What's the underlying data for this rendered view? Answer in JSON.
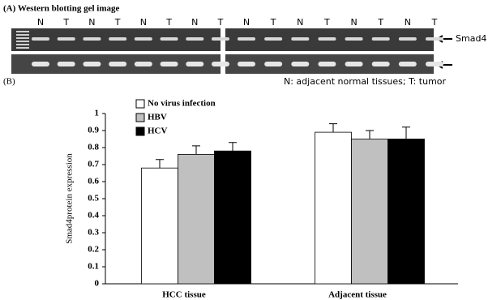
{
  "panel_a": {
    "title": "(A) Western blotting gel image",
    "lanes_left": [
      "N",
      "T",
      "N",
      "T",
      "N",
      "T",
      "N",
      "T"
    ],
    "lanes_right": [
      "N",
      "T",
      "N",
      "T",
      "N",
      "T",
      "N",
      "T"
    ],
    "band_label": "Smad4"
  },
  "panel_b": {
    "label": "(B)",
    "note": "N: adjacent normal tissues; T: tumor"
  },
  "chart_data": {
    "type": "bar",
    "ylabel": "Smad4protein expression",
    "categories": [
      "HCC tissue",
      "Adjacent tissue"
    ],
    "series": [
      {
        "name": "No virus infection",
        "color": "#ffffff",
        "values": [
          0.68,
          0.89
        ],
        "errors": [
          0.05,
          0.05
        ]
      },
      {
        "name": "HBV",
        "color": "#c0c0c0",
        "values": [
          0.76,
          0.85
        ],
        "errors": [
          0.05,
          0.05
        ]
      },
      {
        "name": "HCV",
        "color": "#000000",
        "values": [
          0.78,
          0.85
        ],
        "errors": [
          0.05,
          0.07
        ]
      }
    ],
    "ylim": [
      0,
      1
    ],
    "yticks": [
      0,
      0.1,
      0.2,
      0.3,
      0.4,
      0.5,
      0.6,
      0.7,
      0.8,
      0.9,
      1
    ]
  }
}
